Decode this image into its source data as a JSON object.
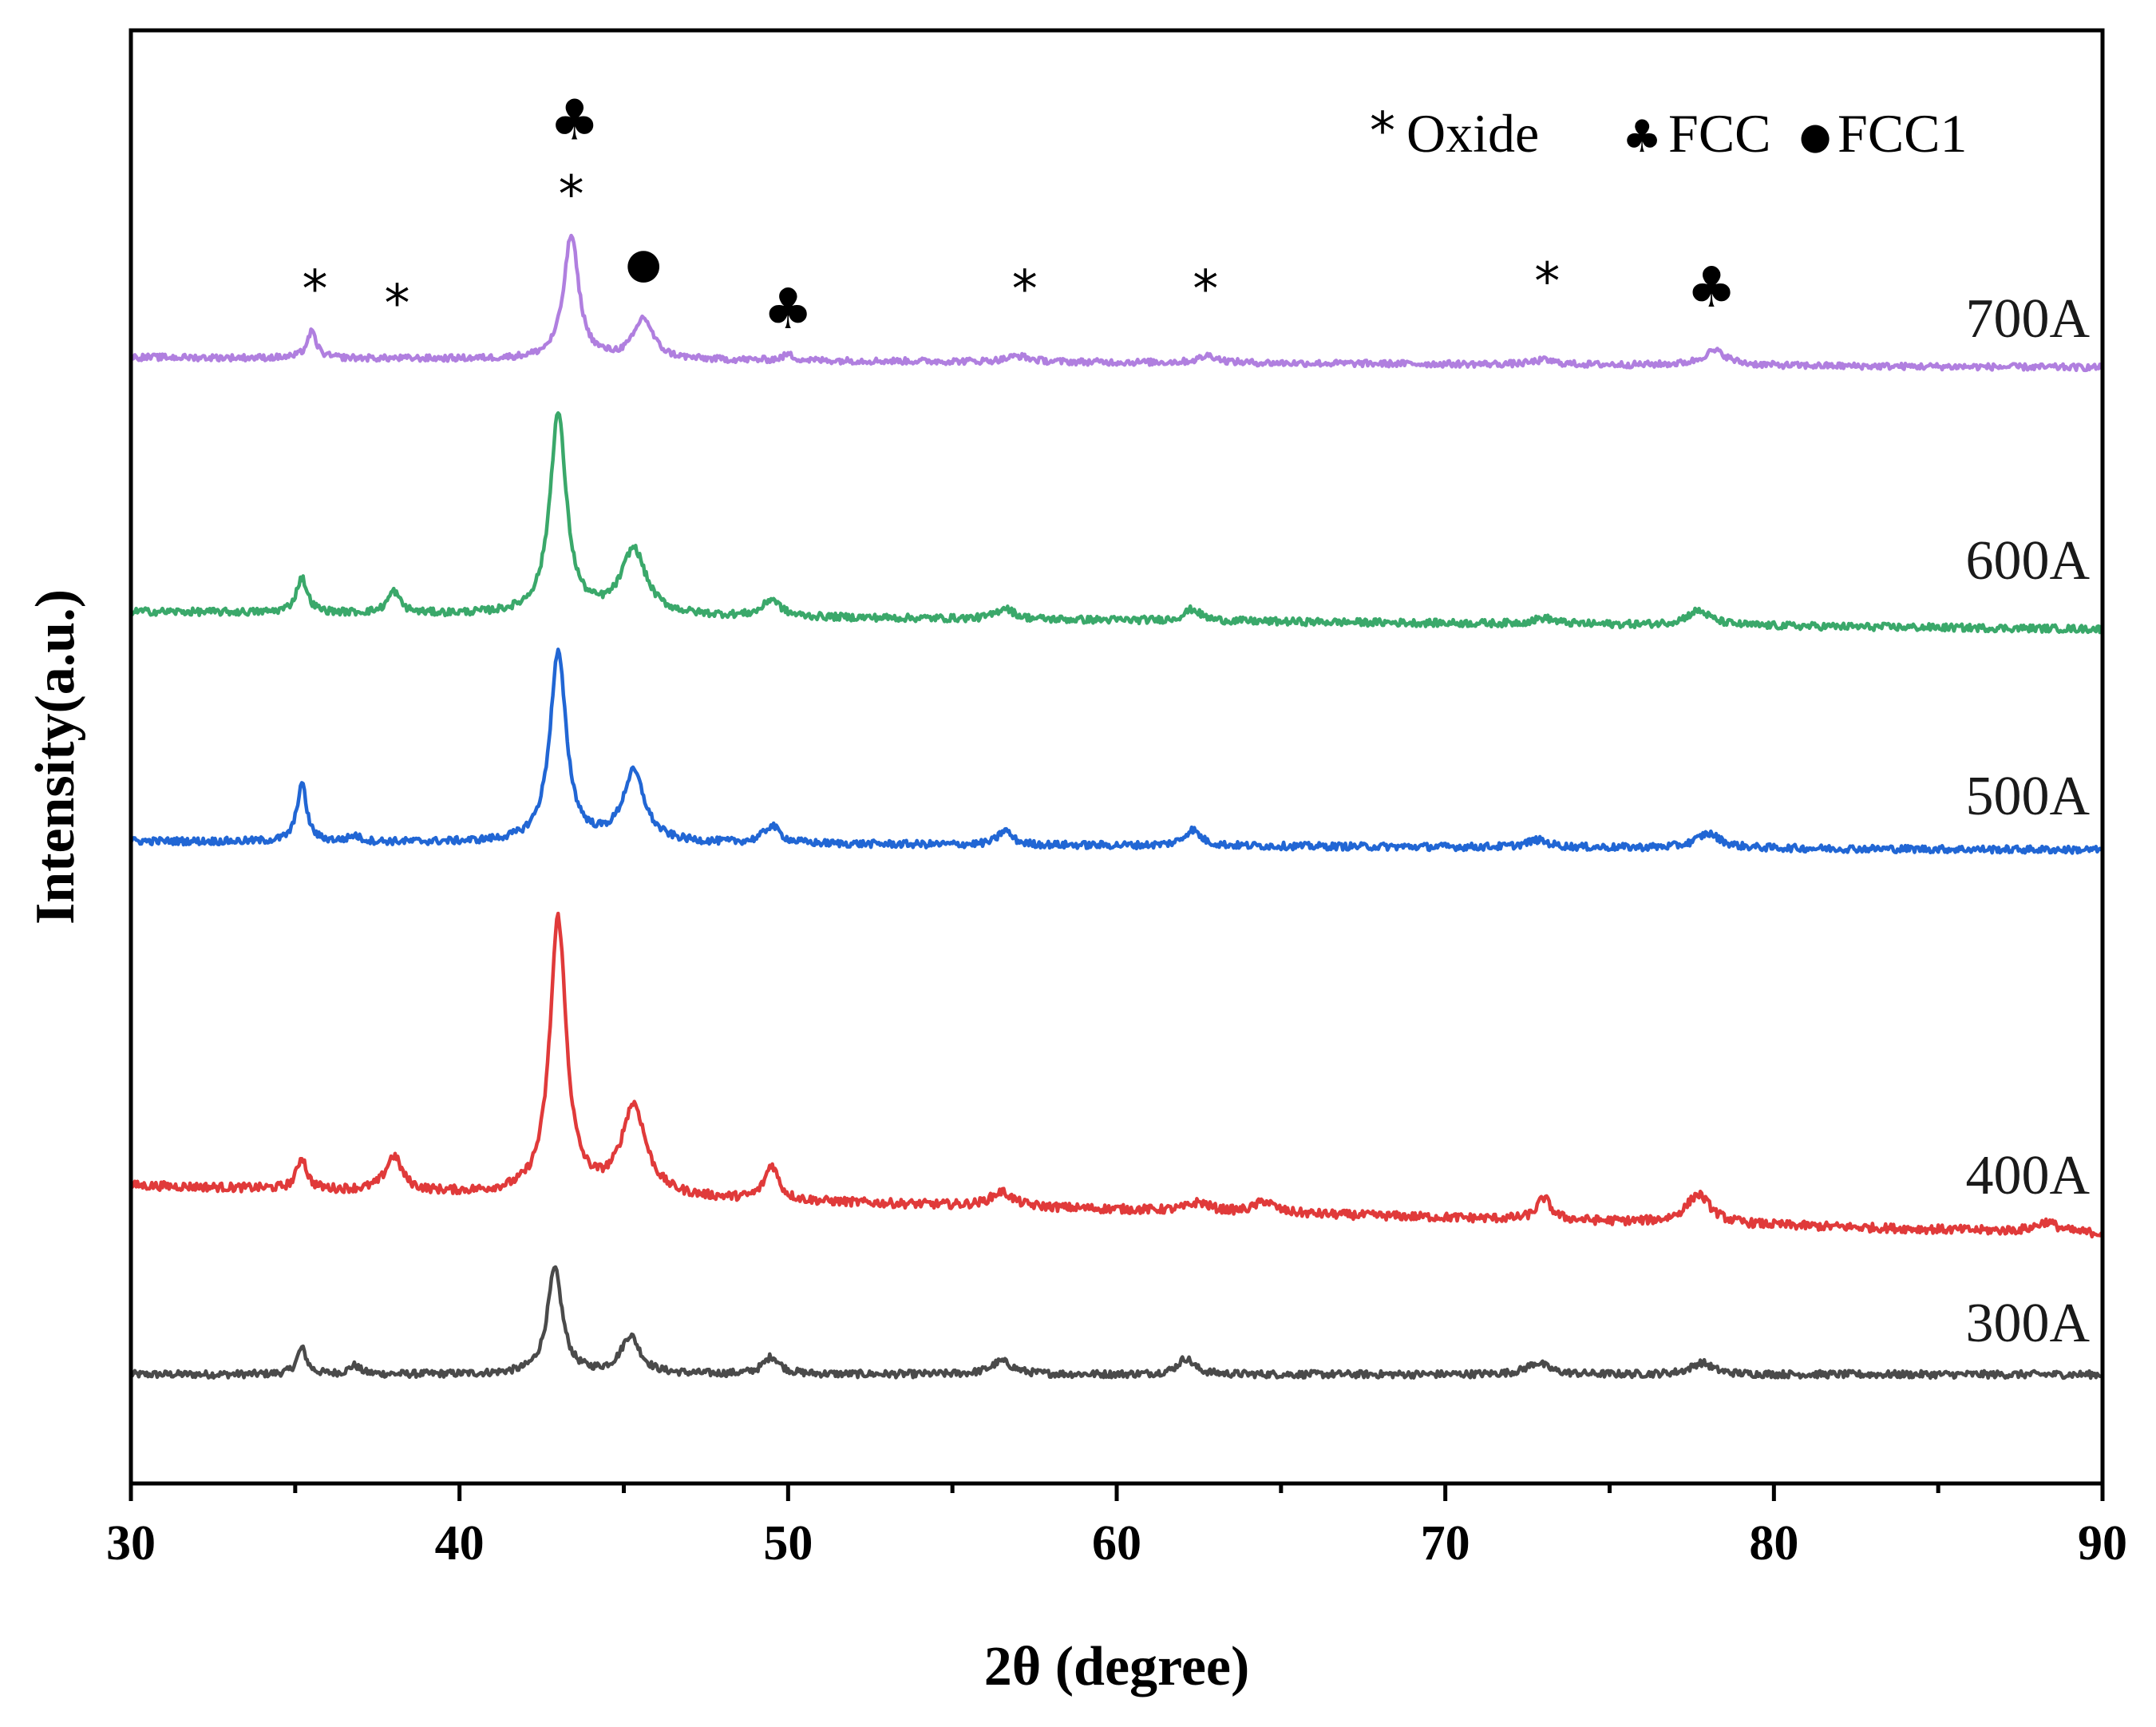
{
  "chart_data": {
    "type": "line",
    "title": "",
    "xlabel": "2θ (degree)",
    "ylabel": "Intensity(a.u.)",
    "xlim": [
      30,
      90
    ],
    "xticks": [
      30,
      40,
      50,
      60,
      70,
      80,
      90
    ],
    "ylim": [
      0,
      1.0
    ],
    "yticks_shown": false,
    "grid": false,
    "legend": {
      "position": "top-right",
      "entries": [
        {
          "symbol": "*",
          "label": "Oxide"
        },
        {
          "symbol": "♣",
          "label": "FCC"
        },
        {
          "symbol": "●",
          "label": "FCC1"
        }
      ]
    },
    "series": [
      {
        "name": "300A",
        "color": "#4a4a4a",
        "baseline": 0.075,
        "slope": 0.0,
        "peaks": [
          [
            35.2,
            0.018,
            0.35
          ],
          [
            36.8,
            0.006,
            0.4
          ],
          [
            42.9,
            0.072,
            0.55
          ],
          [
            45.2,
            0.026,
            0.7
          ],
          [
            49.5,
            0.012,
            0.6
          ],
          [
            56.5,
            0.009,
            0.8
          ],
          [
            62.1,
            0.011,
            0.6
          ],
          [
            72.8,
            0.008,
            0.8
          ],
          [
            77.8,
            0.008,
            0.8
          ]
        ],
        "noise": 0.0025
      },
      {
        "name": "400A",
        "color": "#e03a3a",
        "baseline": 0.205,
        "slope": -0.033,
        "peaks": [
          [
            35.2,
            0.022,
            0.35
          ],
          [
            38.0,
            0.024,
            0.6
          ],
          [
            43.0,
            0.19,
            0.6
          ],
          [
            45.3,
            0.062,
            0.9
          ],
          [
            49.5,
            0.024,
            0.5
          ],
          [
            56.5,
            0.01,
            0.8
          ],
          [
            62.5,
            0.006,
            0.8
          ],
          [
            64.5,
            0.008,
            0.7
          ],
          [
            73.0,
            0.015,
            0.5
          ],
          [
            77.7,
            0.02,
            0.9
          ],
          [
            88.3,
            0.007,
            0.8
          ]
        ],
        "noise": 0.003
      },
      {
        "name": "500A",
        "color": "#2166d4",
        "baseline": 0.442,
        "slope": -0.006,
        "peaks": [
          [
            35.2,
            0.04,
            0.35
          ],
          [
            36.8,
            0.004,
            0.4
          ],
          [
            43.0,
            0.13,
            0.6
          ],
          [
            45.3,
            0.048,
            0.8
          ],
          [
            49.5,
            0.012,
            0.6
          ],
          [
            56.6,
            0.01,
            0.5
          ],
          [
            62.3,
            0.011,
            0.6
          ],
          [
            72.8,
            0.005,
            0.8
          ],
          [
            78.0,
            0.01,
            0.9
          ]
        ],
        "noise": 0.0025
      },
      {
        "name": "600A",
        "color": "#3aa86a",
        "baseline": 0.6,
        "slope": -0.012,
        "peaks": [
          [
            35.2,
            0.024,
            0.4
          ],
          [
            38.0,
            0.015,
            0.45
          ],
          [
            43.0,
            0.138,
            0.6
          ],
          [
            45.3,
            0.045,
            0.9
          ],
          [
            49.5,
            0.012,
            0.6
          ],
          [
            56.6,
            0.008,
            0.6
          ],
          [
            62.3,
            0.008,
            0.6
          ],
          [
            73.0,
            0.004,
            0.8
          ],
          [
            77.7,
            0.01,
            0.9
          ]
        ],
        "noise": 0.0025
      },
      {
        "name": "700A",
        "color": "#b07fdf",
        "baseline": 0.775,
        "slope": -0.007,
        "peaks": [
          [
            35.5,
            0.018,
            0.35
          ],
          [
            43.4,
            0.085,
            0.55
          ],
          [
            45.6,
            0.028,
            0.7
          ],
          [
            50.0,
            0.004,
            0.4
          ],
          [
            57.0,
            0.004,
            0.8
          ],
          [
            62.8,
            0.005,
            0.7
          ],
          [
            73.0,
            0.003,
            0.8
          ],
          [
            78.2,
            0.01,
            0.9
          ]
        ],
        "noise": 0.0022
      }
    ],
    "annotations": [
      {
        "symbol": "*",
        "x": 35.6,
        "y": 0.81
      },
      {
        "symbol": "*",
        "x": 38.1,
        "y": 0.8
      },
      {
        "symbol": "*",
        "x": 43.4,
        "y": 0.875
      },
      {
        "symbol": "♣",
        "x": 43.5,
        "y": 0.925
      },
      {
        "symbol": "●",
        "x": 45.6,
        "y": 0.83
      },
      {
        "symbol": "♣",
        "x": 50.0,
        "y": 0.795
      },
      {
        "symbol": "*",
        "x": 57.2,
        "y": 0.81
      },
      {
        "symbol": "*",
        "x": 62.7,
        "y": 0.81
      },
      {
        "symbol": "*",
        "x": 73.1,
        "y": 0.815
      },
      {
        "symbol": "♣",
        "x": 78.1,
        "y": 0.81
      }
    ]
  }
}
